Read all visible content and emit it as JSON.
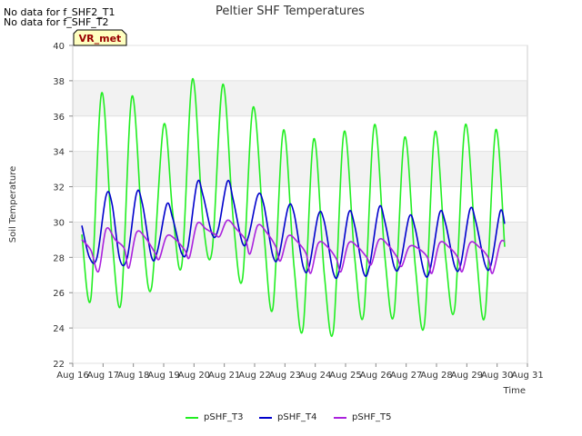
{
  "chart_data": {
    "type": "line",
    "title": "Peltier SHF Temperatures",
    "xlabel": "Time",
    "ylabel": "Soil Temperature",
    "ylim": [
      22,
      40
    ],
    "xlim": [
      16,
      31
    ],
    "yticks": [
      22,
      24,
      26,
      28,
      30,
      32,
      34,
      36,
      38,
      40
    ],
    "xticks": [
      "Aug 16",
      "Aug 17",
      "Aug 18",
      "Aug 19",
      "Aug 20",
      "Aug 21",
      "Aug 22",
      "Aug 23",
      "Aug 24",
      "Aug 25",
      "Aug 26",
      "Aug 27",
      "Aug 28",
      "Aug 29",
      "Aug 30",
      "Aug 31"
    ],
    "no_data_messages": [
      "No data for f_SHF2_T1",
      "No data for f_SHF_T2"
    ],
    "annotation_box": "VR_met",
    "legend_position": "bottom-center",
    "grid": true,
    "series": [
      {
        "name": "pSHF_T3",
        "color": "#22ee22",
        "points": [
          [
            16.3,
            29.3
          ],
          [
            16.6,
            25.7
          ],
          [
            16.95,
            37.3
          ],
          [
            17.3,
            29.0
          ],
          [
            17.6,
            25.5
          ],
          [
            17.95,
            37.1
          ],
          [
            18.3,
            29.5
          ],
          [
            18.6,
            26.3
          ],
          [
            19.0,
            35.5
          ],
          [
            19.3,
            30.5
          ],
          [
            19.6,
            27.6
          ],
          [
            19.95,
            38.1
          ],
          [
            20.3,
            30.0
          ],
          [
            20.6,
            28.4
          ],
          [
            20.95,
            37.8
          ],
          [
            21.3,
            30.0
          ],
          [
            21.6,
            26.8
          ],
          [
            21.95,
            36.5
          ],
          [
            22.3,
            29.5
          ],
          [
            22.6,
            25.1
          ],
          [
            22.95,
            35.2
          ],
          [
            23.3,
            27.5
          ],
          [
            23.6,
            24.0
          ],
          [
            23.95,
            34.7
          ],
          [
            24.3,
            27.0
          ],
          [
            24.6,
            23.9
          ],
          [
            24.95,
            35.1
          ],
          [
            25.3,
            28.0
          ],
          [
            25.6,
            24.8
          ],
          [
            25.95,
            35.5
          ],
          [
            26.3,
            28.0
          ],
          [
            26.6,
            24.8
          ],
          [
            26.95,
            34.8
          ],
          [
            27.3,
            27.5
          ],
          [
            27.6,
            24.2
          ],
          [
            27.95,
            35.1
          ],
          [
            28.3,
            28.0
          ],
          [
            28.6,
            25.1
          ],
          [
            28.95,
            35.5
          ],
          [
            29.3,
            28.5
          ],
          [
            29.6,
            24.7
          ],
          [
            29.95,
            35.2
          ],
          [
            30.25,
            28.6
          ]
        ]
      },
      {
        "name": "pSHF_T4",
        "color": "#0000cc",
        "points": [
          [
            16.3,
            29.8
          ],
          [
            16.55,
            28.0
          ],
          [
            16.8,
            28.0
          ],
          [
            17.1,
            31.5
          ],
          [
            17.3,
            31.0
          ],
          [
            17.55,
            27.9
          ],
          [
            17.8,
            28.0
          ],
          [
            18.1,
            31.6
          ],
          [
            18.3,
            31.0
          ],
          [
            18.6,
            28.0
          ],
          [
            18.8,
            28.4
          ],
          [
            19.1,
            31.0
          ],
          [
            19.3,
            30.2
          ],
          [
            19.6,
            28.2
          ],
          [
            19.8,
            28.6
          ],
          [
            20.1,
            32.2
          ],
          [
            20.3,
            31.5
          ],
          [
            20.6,
            29.3
          ],
          [
            20.8,
            29.6
          ],
          [
            21.1,
            32.3
          ],
          [
            21.3,
            31.2
          ],
          [
            21.6,
            28.8
          ],
          [
            21.8,
            29.2
          ],
          [
            22.1,
            31.5
          ],
          [
            22.3,
            31.0
          ],
          [
            22.6,
            28.1
          ],
          [
            22.8,
            28.1
          ],
          [
            23.1,
            30.8
          ],
          [
            23.3,
            30.5
          ],
          [
            23.6,
            27.5
          ],
          [
            23.8,
            27.5
          ],
          [
            24.1,
            30.4
          ],
          [
            24.3,
            30.0
          ],
          [
            24.6,
            27.1
          ],
          [
            24.8,
            27.3
          ],
          [
            25.1,
            30.5
          ],
          [
            25.3,
            29.8
          ],
          [
            25.6,
            27.1
          ],
          [
            25.8,
            27.6
          ],
          [
            26.1,
            30.8
          ],
          [
            26.3,
            30.0
          ],
          [
            26.6,
            27.5
          ],
          [
            26.8,
            27.6
          ],
          [
            27.1,
            30.3
          ],
          [
            27.3,
            29.6
          ],
          [
            27.6,
            27.1
          ],
          [
            27.8,
            27.4
          ],
          [
            28.1,
            30.5
          ],
          [
            28.3,
            29.9
          ],
          [
            28.6,
            27.5
          ],
          [
            28.8,
            27.6
          ],
          [
            29.1,
            30.7
          ],
          [
            29.3,
            30.0
          ],
          [
            29.6,
            27.6
          ],
          [
            29.8,
            27.6
          ],
          [
            30.1,
            30.6
          ],
          [
            30.25,
            29.9
          ]
        ]
      },
      {
        "name": "pSHF_T5",
        "color": "#aa22dd",
        "points": [
          [
            16.3,
            29.0
          ],
          [
            16.6,
            28.4
          ],
          [
            16.85,
            27.2
          ],
          [
            17.1,
            29.6
          ],
          [
            17.4,
            29.0
          ],
          [
            17.7,
            28.5
          ],
          [
            17.85,
            27.4
          ],
          [
            18.1,
            29.4
          ],
          [
            18.4,
            29.1
          ],
          [
            18.7,
            28.3
          ],
          [
            18.85,
            27.9
          ],
          [
            19.1,
            29.2
          ],
          [
            19.4,
            29.0
          ],
          [
            19.7,
            28.4
          ],
          [
            19.85,
            28.0
          ],
          [
            20.1,
            29.9
          ],
          [
            20.4,
            29.6
          ],
          [
            20.7,
            29.3
          ],
          [
            20.85,
            29.2
          ],
          [
            21.1,
            30.1
          ],
          [
            21.4,
            29.6
          ],
          [
            21.7,
            29.0
          ],
          [
            21.85,
            28.2
          ],
          [
            22.1,
            29.8
          ],
          [
            22.4,
            29.4
          ],
          [
            22.7,
            28.6
          ],
          [
            22.85,
            27.8
          ],
          [
            23.1,
            29.2
          ],
          [
            23.4,
            28.9
          ],
          [
            23.7,
            28.2
          ],
          [
            23.85,
            27.1
          ],
          [
            24.1,
            28.8
          ],
          [
            24.4,
            28.6
          ],
          [
            24.7,
            27.9
          ],
          [
            24.85,
            27.2
          ],
          [
            25.1,
            28.8
          ],
          [
            25.4,
            28.6
          ],
          [
            25.7,
            28.0
          ],
          [
            25.85,
            27.6
          ],
          [
            26.1,
            29.0
          ],
          [
            26.4,
            28.7
          ],
          [
            26.7,
            28.0
          ],
          [
            26.85,
            27.5
          ],
          [
            27.1,
            28.6
          ],
          [
            27.4,
            28.5
          ],
          [
            27.7,
            28.0
          ],
          [
            27.85,
            27.1
          ],
          [
            28.1,
            28.8
          ],
          [
            28.4,
            28.6
          ],
          [
            28.7,
            28.0
          ],
          [
            28.85,
            27.2
          ],
          [
            29.1,
            28.8
          ],
          [
            29.4,
            28.6
          ],
          [
            29.7,
            28.0
          ],
          [
            29.85,
            27.1
          ],
          [
            30.1,
            28.8
          ],
          [
            30.25,
            28.9
          ]
        ]
      }
    ]
  }
}
